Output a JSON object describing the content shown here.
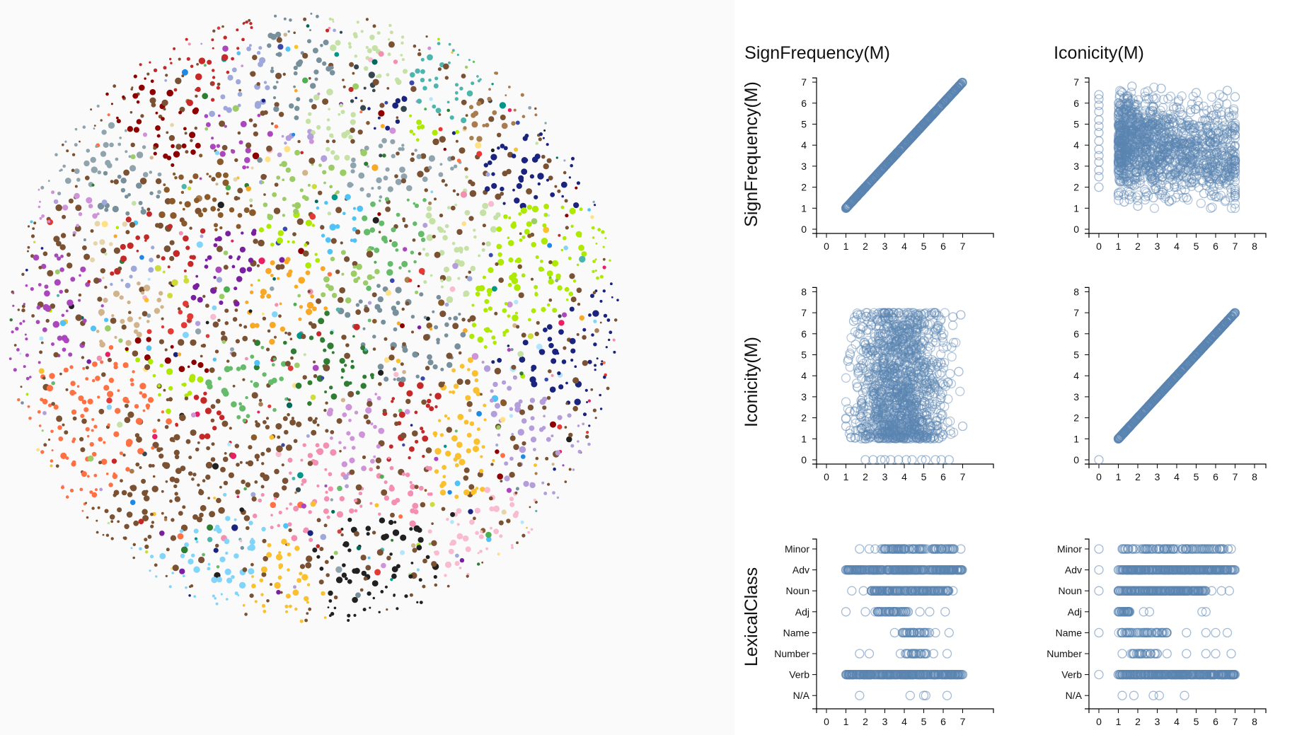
{
  "chart_data": [
    {
      "type": "scatter",
      "variant": "circle-packing",
      "encoding": "colored dots packed in a circle, color = group",
      "palette": [
        "#7a5233",
        "#8b5a2b",
        "#a97c50",
        "#4caf50",
        "#2e7d32",
        "#66bb6a",
        "#9ccc65",
        "#c5e1a5",
        "#b3e5fc",
        "#81d4fa",
        "#4fc3f7",
        "#1e88e5",
        "#3949ab",
        "#9fa8da",
        "#b39ddb",
        "#7b1fa2",
        "#ab47bc",
        "#ce93d8",
        "#e91e63",
        "#f48fb1",
        "#f8bbd0",
        "#c62828",
        "#8e0000",
        "#e53935",
        "#f9a825",
        "#fbc02d",
        "#ffe082",
        "#e6d5a8",
        "#d2b48c",
        "#009688",
        "#4db6ac",
        "#00695c",
        "#37474f",
        "#1a237e",
        "#212121",
        "#cddc39",
        "#aeea00",
        "#ff7043",
        "#90a4ae",
        "#78909c"
      ]
    },
    {
      "type": "scatter",
      "variant": "scatterplot-matrix",
      "color": "#5b84b1",
      "marker": "hollow circle",
      "columns": [
        "SignFrequency(M)",
        "Iconicity(M)"
      ],
      "rows": [
        "SignFrequency(M)",
        "Iconicity(M)",
        "LexicalClass"
      ],
      "categories": [
        "Minor",
        "Adv",
        "Noun",
        "Adj",
        "Name",
        "Number",
        "Verb",
        "N/A"
      ],
      "xticks": {
        "SignFrequency(M)": [
          "0",
          "1",
          "2",
          "3",
          "4",
          "5",
          "6",
          "7"
        ],
        "Iconicity(M)": [
          "0",
          "1",
          "2",
          "3",
          "4",
          "5",
          "6",
          "7",
          "8"
        ]
      },
      "yticks": {
        "SignFrequency(M)": [
          "0",
          "1",
          "2",
          "3",
          "4",
          "5",
          "6",
          "7"
        ],
        "Iconicity(M)": [
          "0",
          "1",
          "2",
          "3",
          "4",
          "5",
          "6",
          "7",
          "8"
        ]
      },
      "xlim": {
        "SignFrequency(M)": [
          0,
          8
        ],
        "Iconicity(M)": [
          0,
          8
        ]
      },
      "ylim": {
        "SignFrequency(M)": [
          0,
          8
        ],
        "Iconicity(M)": [
          0,
          8
        ]
      },
      "panels": [
        {
          "row": "SignFrequency(M)",
          "col": "SignFrequency(M)",
          "points": [
            [
              1.0,
              1.0
            ],
            [
              1.1,
              1.1
            ],
            [
              1.25,
              1.25
            ],
            [
              1.4,
              1.4
            ],
            [
              1.6,
              1.6
            ],
            [
              1.8,
              1.8
            ],
            [
              2.0,
              2.0
            ],
            [
              2.2,
              2.2
            ],
            [
              2.4,
              2.4
            ],
            [
              2.6,
              2.6
            ],
            [
              2.8,
              2.8
            ],
            [
              3.0,
              3.0
            ],
            [
              3.2,
              3.2
            ],
            [
              3.4,
              3.4
            ],
            [
              3.6,
              3.6
            ],
            [
              3.8,
              3.8
            ],
            [
              4.0,
              4.0
            ],
            [
              4.2,
              4.2
            ],
            [
              4.4,
              4.4
            ],
            [
              4.6,
              4.6
            ],
            [
              4.8,
              4.8
            ],
            [
              5.0,
              5.0
            ],
            [
              5.2,
              5.2
            ],
            [
              5.4,
              5.4
            ],
            [
              5.6,
              5.6
            ],
            [
              5.8,
              5.8
            ],
            [
              6.0,
              6.0
            ],
            [
              6.2,
              6.2
            ],
            [
              6.4,
              6.4
            ],
            [
              6.6,
              6.6
            ],
            [
              6.8,
              6.8
            ],
            [
              6.95,
              6.95
            ]
          ]
        },
        {
          "row": "SignFrequency(M)",
          "col": "Iconicity(M)",
          "points": [
            [
              0,
              2.0
            ],
            [
              0,
              2.5
            ],
            [
              0,
              2.8
            ],
            [
              0,
              3.2
            ],
            [
              0,
              3.5
            ],
            [
              0,
              3.8
            ],
            [
              0,
              4.2
            ],
            [
              0,
              4.6
            ],
            [
              0,
              4.9
            ],
            [
              0,
              5.2
            ],
            [
              0,
              5.6
            ],
            [
              0,
              5.9
            ],
            [
              0,
              6.2
            ],
            [
              0,
              6.4
            ],
            [
              1.0,
              1.6
            ],
            [
              1.1,
              5.9
            ],
            [
              1.2,
              6.5
            ],
            [
              1.3,
              1.3
            ],
            [
              1.5,
              2.3
            ],
            [
              1.7,
              6.8
            ],
            [
              2.0,
              1.1
            ],
            [
              2.4,
              5.3
            ],
            [
              2.8,
              1.5
            ],
            [
              3.2,
              6.7
            ],
            [
              3.6,
              2.0
            ],
            [
              4.0,
              5.8
            ],
            [
              4.5,
              1.5
            ],
            [
              5.0,
              6.5
            ],
            [
              5.4,
              1.7
            ],
            [
              5.8,
              5.4
            ],
            [
              6.2,
              2.1
            ],
            [
              6.6,
              6.6
            ],
            [
              7.0,
              1.7
            ],
            [
              7.0,
              4.5
            ],
            [
              7.0,
              6.3
            ],
            [
              6.9,
              3.3
            ]
          ]
        },
        {
          "row": "Iconicity(M)",
          "col": "SignFrequency(M)",
          "points": [
            [
              2.0,
              0
            ],
            [
              2.4,
              0
            ],
            [
              2.8,
              0
            ],
            [
              3.0,
              0
            ],
            [
              3.3,
              0
            ],
            [
              3.7,
              0
            ],
            [
              4.1,
              0
            ],
            [
              4.4,
              0
            ],
            [
              4.9,
              0
            ],
            [
              5.1,
              0
            ],
            [
              5.6,
              0
            ],
            [
              5.9,
              0
            ],
            [
              6.3,
              0
            ],
            [
              1.0,
              1.6
            ],
            [
              1.1,
              4.7
            ],
            [
              1.2,
              2.3
            ],
            [
              1.4,
              6.6
            ],
            [
              1.6,
              6.9
            ],
            [
              1.8,
              1.5
            ],
            [
              2.3,
              6.8
            ],
            [
              3.0,
              7.0
            ],
            [
              3.6,
              1.1
            ],
            [
              4.2,
              6.9
            ],
            [
              4.8,
              1.0
            ],
            [
              5.4,
              6.9
            ],
            [
              6.0,
              1.2
            ],
            [
              6.5,
              6.8
            ],
            [
              6.9,
              6.9
            ],
            [
              7.0,
              1.6
            ],
            [
              6.8,
              4.2
            ]
          ]
        },
        {
          "row": "Iconicity(M)",
          "col": "Iconicity(M)",
          "points": [
            [
              0,
              0
            ],
            [
              1.0,
              1.0
            ],
            [
              1.2,
              1.2
            ],
            [
              1.5,
              1.5
            ],
            [
              2.0,
              2.0
            ],
            [
              2.5,
              2.5
            ],
            [
              3.0,
              3.0
            ],
            [
              3.5,
              3.5
            ],
            [
              4.0,
              4.0
            ],
            [
              4.5,
              4.5
            ],
            [
              5.0,
              5.0
            ],
            [
              5.5,
              5.5
            ],
            [
              6.0,
              6.0
            ],
            [
              6.5,
              6.5
            ],
            [
              7.0,
              7.0
            ]
          ]
        },
        {
          "row": "LexicalClass",
          "col": "SignFrequency(M)",
          "points": [
            [
              "Minor",
              1.7
            ],
            [
              "Minor",
              2.2
            ],
            [
              "Minor",
              2.5
            ],
            [
              "Minor",
              3.0
            ],
            [
              "Minor",
              3.3
            ],
            [
              "Minor",
              3.8
            ],
            [
              "Minor",
              6.9
            ],
            [
              "Adv",
              1.0
            ],
            [
              "Adv",
              6.9
            ],
            [
              "Noun",
              1.3
            ],
            [
              "Noun",
              1.9
            ],
            [
              "Noun",
              2.3
            ],
            [
              "Noun",
              6.5
            ],
            [
              "Adj",
              1.0
            ],
            [
              "Adj",
              2.0
            ],
            [
              "Adj",
              2.5
            ],
            [
              "Adj",
              3.2
            ],
            [
              "Adj",
              4.2
            ],
            [
              "Adj",
              4.8
            ],
            [
              "Adj",
              5.3
            ],
            [
              "Adj",
              6.1
            ],
            [
              "Name",
              3.5
            ],
            [
              "Name",
              3.9
            ],
            [
              "Name",
              4.5
            ],
            [
              "Name",
              5.0
            ],
            [
              "Name",
              5.6
            ],
            [
              "Name",
              6.3
            ],
            [
              "Number",
              1.7
            ],
            [
              "Number",
              2.2
            ],
            [
              "Number",
              3.8
            ],
            [
              "Number",
              4.5
            ],
            [
              "Number",
              5.5
            ],
            [
              "Number",
              6.2
            ],
            [
              "Verb",
              1.0
            ],
            [
              "Verb",
              7.0
            ],
            [
              "N/A",
              1.7
            ],
            [
              "N/A",
              4.3
            ],
            [
              "N/A",
              5.0
            ],
            [
              "N/A",
              5.1
            ],
            [
              "N/A",
              6.2
            ]
          ]
        },
        {
          "row": "LexicalClass",
          "col": "Iconicity(M)",
          "points": [
            [
              "Minor",
              0
            ],
            [
              "Minor",
              1.2
            ],
            [
              "Minor",
              2.5
            ],
            [
              "Minor",
              3.5
            ],
            [
              "Minor",
              4.5
            ],
            [
              "Minor",
              5.5
            ],
            [
              "Minor",
              6.2
            ],
            [
              "Minor",
              6.8
            ],
            [
              "Adv",
              0
            ],
            [
              "Adv",
              1.0
            ],
            [
              "Adv",
              7.0
            ],
            [
              "Noun",
              0
            ],
            [
              "Noun",
              1.0
            ],
            [
              "Noun",
              5.8
            ],
            [
              "Noun",
              6.3
            ],
            [
              "Noun",
              6.7
            ],
            [
              "Adj",
              1.0
            ],
            [
              "Adj",
              1.5
            ],
            [
              "Adj",
              2.3
            ],
            [
              "Adj",
              2.6
            ],
            [
              "Adj",
              5.3
            ],
            [
              "Adj",
              5.5
            ],
            [
              "Name",
              0
            ],
            [
              "Name",
              1.2
            ],
            [
              "Name",
              2.5
            ],
            [
              "Name",
              3.5
            ],
            [
              "Name",
              4.5
            ],
            [
              "Name",
              5.5
            ],
            [
              "Name",
              6.0
            ],
            [
              "Name",
              6.6
            ],
            [
              "Number",
              1.2
            ],
            [
              "Number",
              2.5
            ],
            [
              "Number",
              3.0
            ],
            [
              "Number",
              3.5
            ],
            [
              "Number",
              4.5
            ],
            [
              "Number",
              5.5
            ],
            [
              "Number",
              6.0
            ],
            [
              "Number",
              6.8
            ],
            [
              "Verb",
              0
            ],
            [
              "Verb",
              1.0
            ],
            [
              "Verb",
              7.0
            ],
            [
              "N/A",
              1.2
            ],
            [
              "N/A",
              1.8
            ],
            [
              "N/A",
              2.8
            ],
            [
              "N/A",
              3.1
            ],
            [
              "N/A",
              4.4
            ]
          ]
        }
      ]
    }
  ]
}
